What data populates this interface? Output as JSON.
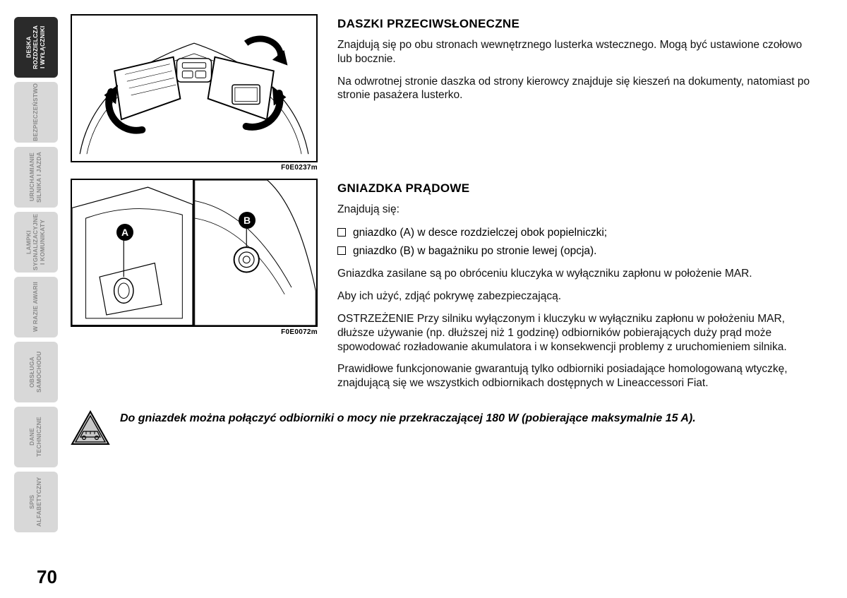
{
  "sidebar": {
    "tabs": [
      {
        "label": "DESKA\nROZDZIELCZA\nI WYŁĄCZNIKI",
        "active": true
      },
      {
        "label": "BEZPIECZEŃSTWO",
        "active": false
      },
      {
        "label": "URUCHAMIANIE\nSILNIKA I JAZDA",
        "active": false
      },
      {
        "label": "LAMPKI\nSYGNALIZACYJNE\nI KOMUNIKATY",
        "active": false
      },
      {
        "label": "W RAZIE AWARII",
        "active": false
      },
      {
        "label": "OBSŁUGA\nSAMOCHODU",
        "active": false
      },
      {
        "label": "DANE\nTECHNICZNE",
        "active": false
      },
      {
        "label": "SPIS\nALFABETYCZNY",
        "active": false
      }
    ]
  },
  "figures": {
    "fig1_caption": "F0E0237m",
    "fig2_caption": "F0E0072m",
    "callout_a": "A",
    "callout_b": "B"
  },
  "section1": {
    "heading": "DASZKI PRZECIWSŁONECZNE",
    "p1": "Znajdują się po obu stronach wewnętrznego lusterka wstecznego. Mogą być ustawione czołowo lub bocznie.",
    "p2": "Na odwrotnej stronie daszka od strony kierowcy znajduje się kieszeń na dokumenty, natomiast po stronie pasażera lusterko."
  },
  "section2": {
    "heading": "GNIAZDKA PRĄDOWE",
    "intro": "Znajdują się:",
    "bullets": [
      "gniazdko (A) w desce rozdzielczej obok popielniczki;",
      "gniazdko (B) w bagażniku po stronie lewej (opcja)."
    ],
    "p1": "Gniazdka zasilane są po obróceniu kluczyka w wyłączniku zapłonu w położenie MAR.",
    "p2": "Aby ich użyć, zdjąć pokrywę zabezpieczającą.",
    "p3": "OSTRZEŻENIE Przy silniku wyłączonym i kluczyku w wyłączniku zapłonu w położeniu MAR, dłuższe używanie (np. dłuższej niż 1 godzinę) odbiorników pobierających duży prąd może spowodować rozładowanie akumulatora i w konsekwencji problemy z uruchomieniem silnika.",
    "p4": "Prawidłowe funkcjonowanie gwarantują tylko odbiorniki posiadające homologowaną wtyczkę, znajdującą się we wszystkich odbiornikach dostępnych w Lineaccessori Fiat."
  },
  "warning": {
    "text": "Do gniazdek można połączyć odbiorniki o mocy nie przekraczającej 180 W (pobierające maksymalnie 15 A)."
  },
  "page_number": "70",
  "styling": {
    "active_tab_bg": "#2a2a2a",
    "inactive_tab_bg": "#d8d8d8",
    "inactive_tab_text": "#8a8a8a",
    "body_font_size": 15.5,
    "heading_font_size": 17,
    "warning_font_size": 16,
    "page_num_font_size": 26
  }
}
